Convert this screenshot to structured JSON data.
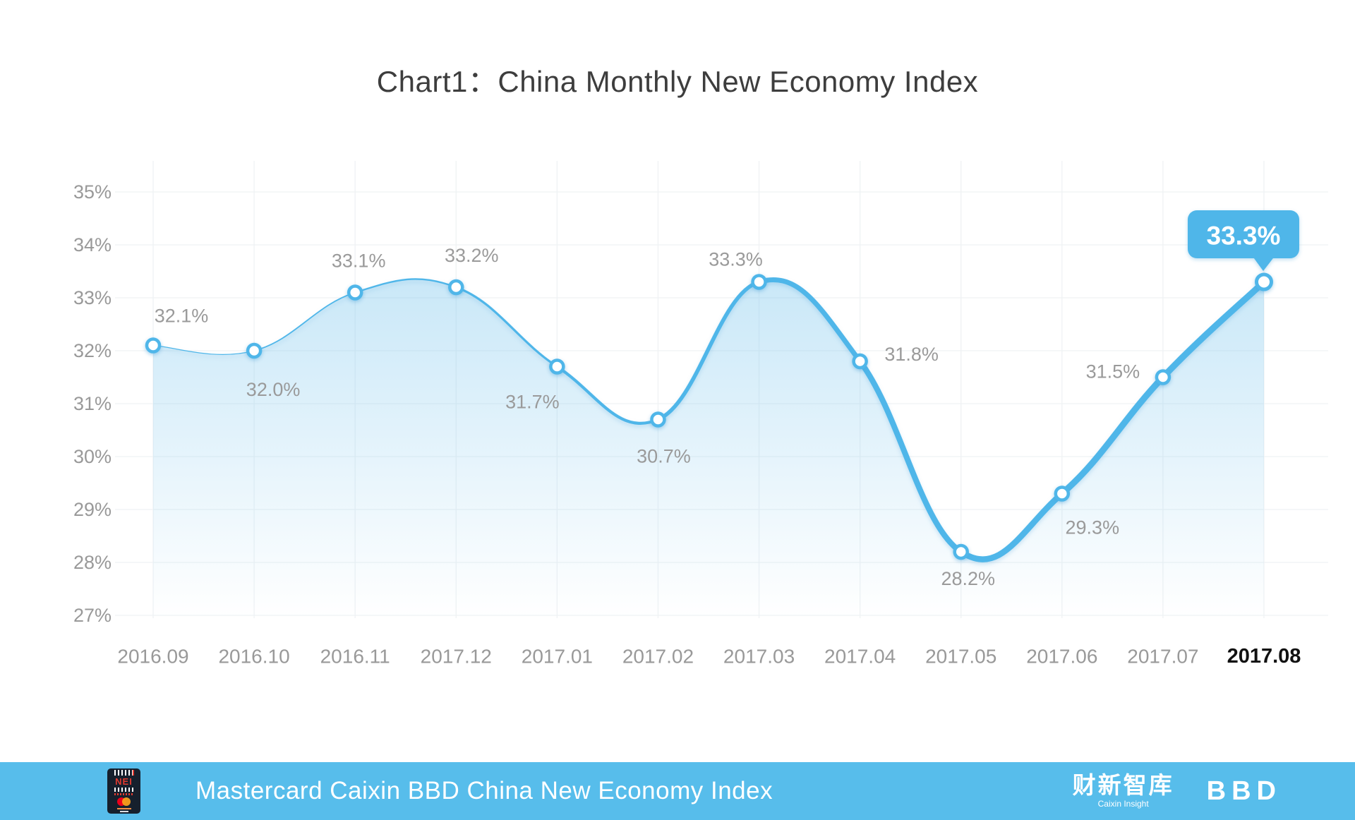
{
  "title": "Chart1：China Monthly New Economy Index",
  "chart_data": {
    "type": "line",
    "x": [
      "2016.09",
      "2016.10",
      "2016.11",
      "2017.12",
      "2017.01",
      "2017.02",
      "2017.03",
      "2017.04",
      "2017.05",
      "2017.06",
      "2017.07",
      "2017.08"
    ],
    "values": [
      32.1,
      32.0,
      33.1,
      33.2,
      31.7,
      30.7,
      33.3,
      31.8,
      28.2,
      29.3,
      31.5,
      33.3
    ],
    "point_labels": [
      "32.1%",
      "32.0%",
      "33.1%",
      "33.2%",
      "31.7%",
      "30.7%",
      "33.3%",
      "31.8%",
      "28.2%",
      "29.3%",
      "31.5%",
      "33.3%"
    ],
    "yticks": [
      "35%",
      "34%",
      "33%",
      "32%",
      "31%",
      "30%",
      "29%",
      "28%",
      "27%"
    ],
    "ylim": [
      27,
      35
    ],
    "grid": true,
    "smooth": true,
    "tapered_line": true,
    "tooltip": {
      "index": 11,
      "text": "33.3%"
    },
    "emphasized_xtick": "2017.08",
    "label_offsets": [
      [
        40,
        -42
      ],
      [
        27,
        55
      ],
      [
        5,
        -45
      ],
      [
        22,
        -45
      ],
      [
        -35,
        50
      ],
      [
        8,
        52
      ],
      [
        -33,
        -32
      ],
      [
        73,
        -10
      ],
      [
        10,
        38
      ],
      [
        43,
        48
      ],
      [
        -71,
        -8
      ],
      null
    ],
    "colors": {
      "line": "#4FB6E9",
      "fill_top": "rgba(121,197,237,0.40)",
      "fill_bottom": "rgba(121,197,237,0)",
      "tooltip_bg": "#4FB6E9",
      "tooltip_text": "#FFFFFF",
      "tick_label": "#999999",
      "data_label": "#9A9A9A",
      "emph_tick_label": "#111111",
      "grid_line": "#EFF2F4",
      "title_color": "#3D3D3D"
    }
  },
  "footer": {
    "text": "Mastercard Caixin BBD China New Economy Index",
    "bar_color": "#57BDEB",
    "nei_label": "NEI",
    "caixin_label": "财新智库",
    "caixin_sub": "Caixin Insight",
    "bbd_label": "BBD"
  }
}
